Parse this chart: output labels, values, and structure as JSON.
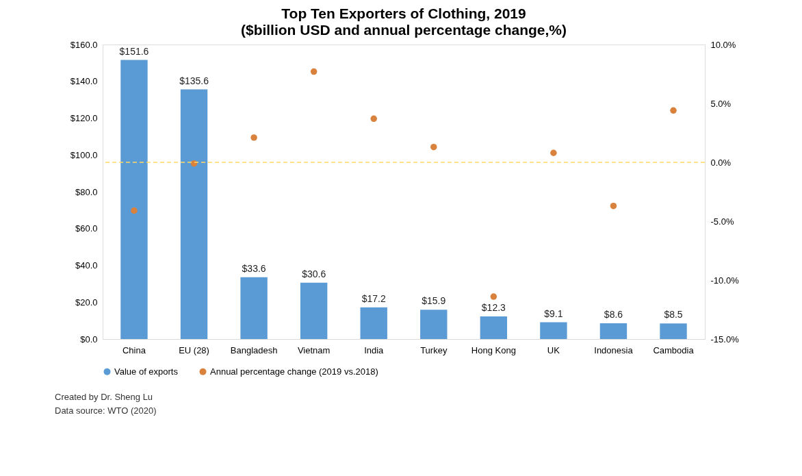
{
  "chart_data": {
    "type": "bar",
    "title": "Top Ten Exporters of Clothing, 2019",
    "subtitle": "($billion USD and annual percentage change,%)",
    "categories": [
      "China",
      "EU (28)",
      "Bangladesh",
      "Vietnam",
      "India",
      "Turkey",
      "Hong Kong",
      "UK",
      "Indonesia",
      "Cambodia"
    ],
    "series": [
      {
        "name": "Value of exports",
        "color": "#5b9bd5",
        "values": [
          151.6,
          135.6,
          33.6,
          30.6,
          17.2,
          15.9,
          12.3,
          9.1,
          8.6,
          8.5
        ],
        "value_labels": [
          "$151.6",
          "$135.6",
          "$33.6",
          "$30.6",
          "$17.2",
          "$15.9",
          "$12.3",
          "$9.1",
          "$8.6",
          "$8.5"
        ]
      },
      {
        "name": "Annual percentage change (2019 vs.2018)",
        "type": "scatter",
        "axis": "y2",
        "color": "#d9823e",
        "values": [
          -4.1,
          -0.1,
          2.1,
          7.7,
          3.7,
          1.3,
          -11.4,
          0.8,
          -3.7,
          4.4
        ]
      }
    ],
    "ylim": [
      0,
      160
    ],
    "yticks": [
      {
        "value": 0,
        "label": "$0.0"
      },
      {
        "value": 20,
        "label": "$20.0"
      },
      {
        "value": 40,
        "label": "$40.0"
      },
      {
        "value": 60,
        "label": "$60.0"
      },
      {
        "value": 80,
        "label": "$80.0"
      },
      {
        "value": 100,
        "label": "$100.0"
      },
      {
        "value": 120,
        "label": "$120.0"
      },
      {
        "value": 140,
        "label": "$140.0"
      },
      {
        "value": 160,
        "label": "$160.0"
      }
    ],
    "y2lim": [
      -15,
      10
    ],
    "y2ticks": [
      {
        "value": -15,
        "label": "-15.0%"
      },
      {
        "value": -10,
        "label": "-10.0%"
      },
      {
        "value": -5,
        "label": "-5.0%"
      },
      {
        "value": 0,
        "label": "0.0%"
      },
      {
        "value": 5,
        "label": "5.0%"
      },
      {
        "value": 10,
        "label": "10.0%"
      }
    ],
    "ref_lines": [
      {
        "axis": "y2",
        "value": 0,
        "color": "#ffd966",
        "line_style": "dashed"
      }
    ],
    "marker": "circle",
    "grid": false,
    "legend": "bottom",
    "annotations": [
      "Created by Dr. Sheng Lu",
      "Data source: WTO (2020)"
    ]
  }
}
